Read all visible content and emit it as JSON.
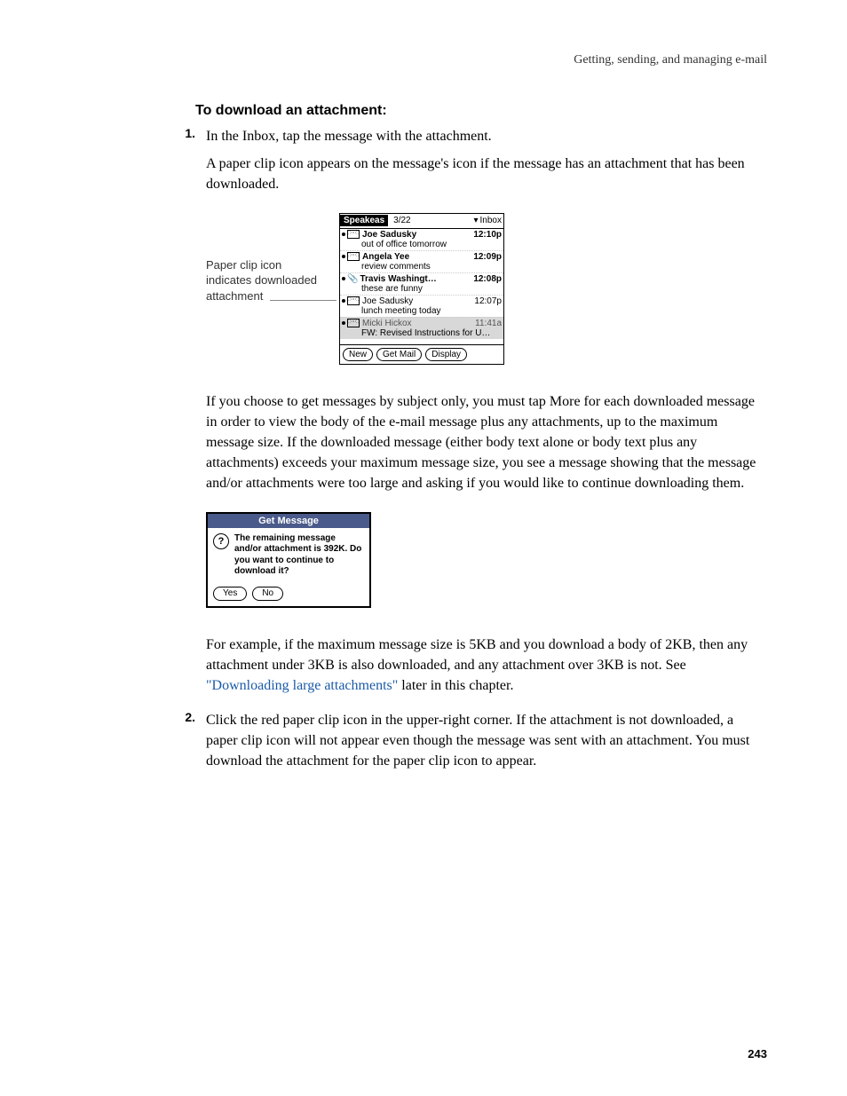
{
  "header": "Getting, sending, and managing e-mail",
  "section_title": "To download an attachment:",
  "step1_num": "1.",
  "step1_text": "In the Inbox, tap the message with the attachment.",
  "para1": "A paper clip icon appears on the message's icon if the message has an attachment that has been downloaded.",
  "callout": "Paper clip icon indicates downloaded attachment",
  "palm": {
    "title": "Speakeas",
    "date": "3/22",
    "folder_arrow": "▾",
    "folder": "Inbox",
    "rows": [
      {
        "sender": "Joe Sadusky",
        "time": "12:10p",
        "subject": "out of office tomorrow",
        "bold": true,
        "icon": "env"
      },
      {
        "sender": "Angela Yee",
        "time": "12:09p",
        "subject": "review comments",
        "bold": true,
        "icon": "env"
      },
      {
        "sender": "Travis Washingt…",
        "time": "12:08p",
        "subject": "these are funny",
        "bold": true,
        "icon": "clip"
      },
      {
        "sender": "Joe Sadusky",
        "time": "12:07p",
        "subject": "lunch meeting today",
        "bold": false,
        "icon": "env"
      },
      {
        "sender": "Micki Hickox",
        "time": "11:41a",
        "subject": "FW: Revised Instructions for U…",
        "bold": false,
        "icon": "env",
        "hl": true
      }
    ],
    "buttons": {
      "new": "New",
      "get": "Get Mail",
      "display": "Display"
    }
  },
  "para2a": "If you choose to get messages by subject only, you must tap More for each downloaded message in order to view the body of the e-mail message plus any attachments, up to the maximum message size. If the downloaded message (either body text alone or body text plus any attachments) exceeds your maximum message size, you see a message showing that the message and/or attachments were too large and asking if you would like to continue downloading them.",
  "dialog": {
    "title": "Get Message",
    "icon": "?",
    "text": "The remaining message and/or attachment is 392K. Do you want to continue to download it?",
    "yes": "Yes",
    "no": "No"
  },
  "para3_pre": "For example, if the maximum message size is 5KB and you download a body of 2KB, then any attachment under 3KB is also downloaded, and any attachment over 3KB is not. See ",
  "para3_link": "\"Downloading large attachments\"",
  "para3_post": " later in this chapter.",
  "step2_num": "2.",
  "step2_text": "Click the red paper clip icon in the upper-right corner. If the attachment is not downloaded, a paper clip icon will not appear even though the message was sent with an attachment. You must download the attachment for the paper clip icon to appear.",
  "page_number": "243"
}
